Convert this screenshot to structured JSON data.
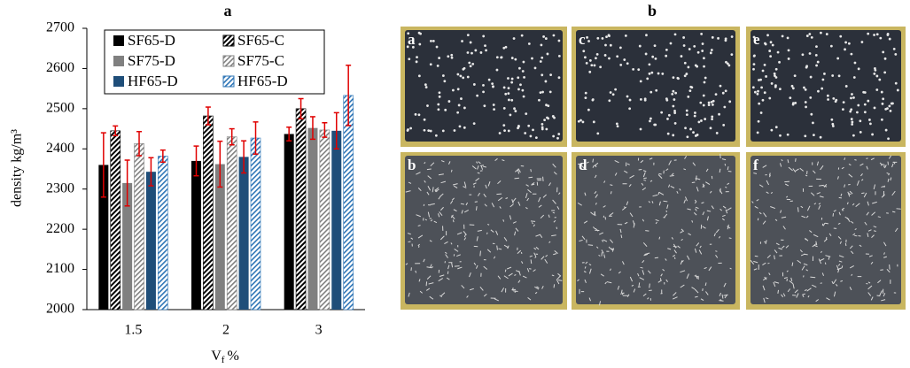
{
  "chart_data": {
    "type": "bar",
    "title": "a",
    "ylabel": "density kg/m³",
    "xlabel_main": "V",
    "xlabel_sub": "f",
    "xlabel_unit": "%",
    "categories": [
      "1.5",
      "2",
      "3"
    ],
    "series": [
      {
        "name": "SF65-D",
        "color": "#000000",
        "hatched": false,
        "values": [
          2360,
          2370,
          2437
        ],
        "errors": [
          80,
          37,
          17
        ]
      },
      {
        "name": "SF65-C",
        "color": "#000000",
        "hatched": true,
        "values": [
          2445,
          2482,
          2500
        ],
        "errors": [
          12,
          22,
          25
        ]
      },
      {
        "name": "SF75-D",
        "color": "#808080",
        "hatched": false,
        "values": [
          2315,
          2362,
          2452
        ],
        "errors": [
          57,
          57,
          28
        ]
      },
      {
        "name": "SF75-C",
        "color": "#808080",
        "hatched": true,
        "values": [
          2413,
          2430,
          2447
        ],
        "errors": [
          30,
          20,
          18
        ]
      },
      {
        "name": "HF65-D",
        "color": "#1f4e79",
        "hatched": false,
        "values": [
          2343,
          2380,
          2445
        ],
        "errors": [
          35,
          40,
          45
        ]
      },
      {
        "name": "HF65-D",
        "color": "#2e75b6",
        "hatched": true,
        "values": [
          2382,
          2427,
          2533
        ],
        "errors": [
          15,
          40,
          75
        ]
      }
    ],
    "error_color": "#e00000",
    "ylim": [
      2000,
      2700
    ],
    "yticks": [
      2000,
      2100,
      2200,
      2300,
      2400,
      2500,
      2600,
      2700
    ]
  },
  "photos": {
    "title": "b",
    "panels": [
      {
        "label": "a"
      },
      {
        "label": "c"
      },
      {
        "label": "e"
      },
      {
        "label": "b"
      },
      {
        "label": "d"
      },
      {
        "label": "f"
      }
    ]
  }
}
